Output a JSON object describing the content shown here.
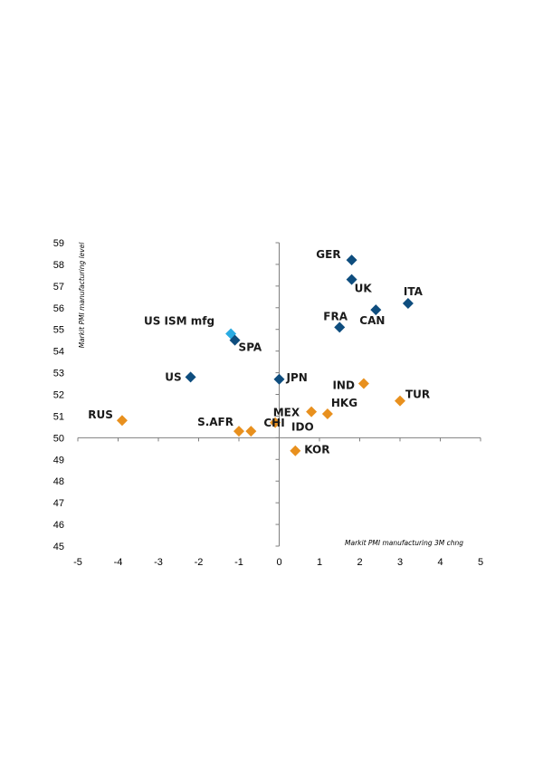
{
  "chart_data": {
    "type": "scatter",
    "xlabel": "Markit PMI manufacturing 3M chng",
    "ylabel": "Markit PMI manufacturing level",
    "xlim": [
      -5,
      5
    ],
    "ylim": [
      45,
      59
    ],
    "x_ticks": [
      "-5",
      "-4",
      "-3",
      "-2",
      "-1",
      "0",
      "1",
      "2",
      "3",
      "4",
      "5"
    ],
    "y_ticks": [
      "45",
      "46",
      "47",
      "48",
      "49",
      "50",
      "51",
      "52",
      "53",
      "54",
      "55",
      "56",
      "57",
      "58",
      "59"
    ],
    "grid": false,
    "colors": {
      "developed": "#0e4d7e",
      "emerging": "#e8901e",
      "us_ism": "#29abe2",
      "axis": "#7f7f7f"
    },
    "points": [
      {
        "label": "GER",
        "x": 1.8,
        "y": 58.2,
        "group": "developed"
      },
      {
        "label": "UK",
        "x": 1.8,
        "y": 57.3,
        "group": "developed"
      },
      {
        "label": "ITA",
        "x": 3.2,
        "y": 56.2,
        "group": "developed"
      },
      {
        "label": "CAN",
        "x": 2.4,
        "y": 55.9,
        "group": "developed"
      },
      {
        "label": "FRA",
        "x": 1.5,
        "y": 55.1,
        "group": "developed"
      },
      {
        "label": "US ISM mfg",
        "x": -1.2,
        "y": 54.8,
        "group": "us_ism"
      },
      {
        "label": "SPA",
        "x": -1.1,
        "y": 54.5,
        "group": "developed"
      },
      {
        "label": "US",
        "x": -2.2,
        "y": 52.8,
        "group": "developed"
      },
      {
        "label": "JPN",
        "x": 0.0,
        "y": 52.7,
        "group": "developed"
      },
      {
        "label": "IND",
        "x": 2.1,
        "y": 52.5,
        "group": "emerging"
      },
      {
        "label": "TUR",
        "x": 3.0,
        "y": 51.7,
        "group": "emerging"
      },
      {
        "label": "HKG",
        "x": 1.2,
        "y": 51.1,
        "group": "emerging"
      },
      {
        "label": "MEX",
        "x": 0.8,
        "y": 51.2,
        "group": "emerging"
      },
      {
        "label": "IDO",
        "x": -0.1,
        "y": 50.7,
        "group": "emerging"
      },
      {
        "label": "RUS",
        "x": -3.9,
        "y": 50.8,
        "group": "emerging"
      },
      {
        "label": "S.AFR",
        "x": -1.0,
        "y": 50.3,
        "group": "emerging"
      },
      {
        "label": "CHI",
        "x": -0.7,
        "y": 50.3,
        "group": "emerging"
      },
      {
        "label": "KOR",
        "x": 0.4,
        "y": 49.4,
        "group": "emerging"
      }
    ]
  }
}
